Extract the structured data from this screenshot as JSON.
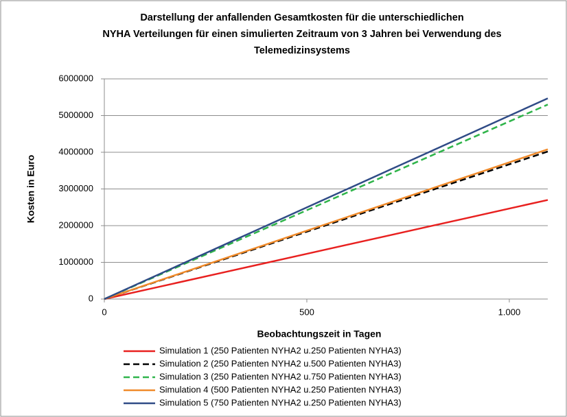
{
  "chart_data": {
    "type": "line",
    "title": [
      "Darstellung der anfallenden Gesamtkosten für die unterschiedlichen",
      "NYHA Verteilungen für einen simulierten Zeitraum von 3 Jahren bei Verwendung des",
      "Telemedizinsystems"
    ],
    "xlabel": "Beobachtungszeit in Tagen",
    "ylabel": "Kosten in Euro",
    "x": [
      0,
      100,
      200,
      300,
      400,
      500,
      600,
      700,
      800,
      900,
      1000,
      1095
    ],
    "xlim": [
      0,
      1095
    ],
    "xticks": [
      0,
      500,
      {
        "value": 1000,
        "label": "1.000"
      }
    ],
    "ylim": [
      0,
      6000000
    ],
    "yticks": [
      0,
      1000000,
      2000000,
      3000000,
      4000000,
      5000000,
      6000000
    ],
    "grid": true,
    "legend": "bottom",
    "series": [
      {
        "name": "Simulation 1 (250 Patienten NYHA2 u.250 Patienten NYHA3)",
        "color": "#e8201f",
        "dash": false,
        "values": [
          0,
          247000,
          493000,
          740000,
          986000,
          1233000,
          1480000,
          1726000,
          1973000,
          2219000,
          2466000,
          2700000
        ]
      },
      {
        "name": "Simulation 2 (250 Patienten NYHA2 u.500 Patienten NYHA3)",
        "color": "#000000",
        "dash": true,
        "values": [
          0,
          367000,
          734000,
          1101000,
          1468000,
          1836000,
          2203000,
          2570000,
          2937000,
          3304000,
          3671000,
          4020000
        ]
      },
      {
        "name": "Simulation 3 (250 Patienten NYHA2 u.750 Patienten NYHA3)",
        "color": "#2fb44a",
        "dash": true,
        "values": [
          0,
          484000,
          968000,
          1452000,
          1936000,
          2420000,
          2904000,
          3388000,
          3872000,
          4356000,
          4840000,
          5300000
        ]
      },
      {
        "name": "Simulation 4 (500 Patienten NYHA2 u.250 Patienten NYHA3)",
        "color": "#f08a2a",
        "dash": false,
        "values": [
          0,
          373000,
          745000,
          1118000,
          1490000,
          1863000,
          2236000,
          2608000,
          2981000,
          3353000,
          3726000,
          4080000
        ]
      },
      {
        "name": "Simulation 5 (750 Patienten NYHA2 u.250 Patienten NYHA3)",
        "color": "#2f4b86",
        "dash": false,
        "values": [
          0,
          500000,
          999000,
          1499000,
          1998000,
          2498000,
          2997000,
          3497000,
          3996000,
          4496000,
          4995000,
          5470000
        ]
      }
    ]
  }
}
